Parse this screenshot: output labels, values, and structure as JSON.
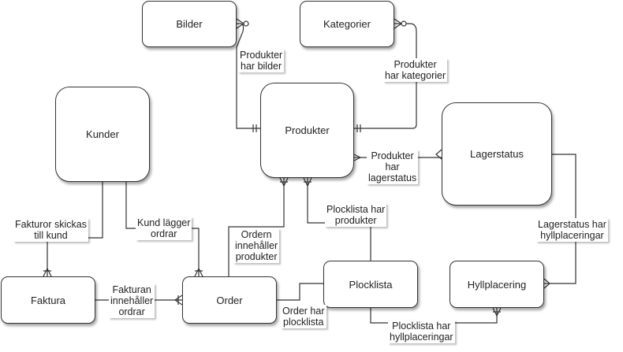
{
  "entities": {
    "bilder": "Bilder",
    "kategorier": "Kategorier",
    "kunder": "Kunder",
    "produkter": "Produkter",
    "lagerstatus": "Lagerstatus",
    "faktura": "Faktura",
    "order": "Order",
    "plocklista": "Plocklista",
    "hyllplacering": "Hyllplacering"
  },
  "relationships": {
    "produkter_har_bilder": "Produkter\nhar bilder",
    "produkter_har_kategorier": "Produkter\nhar kategorier",
    "produkter_har_lagerstatus": "Produkter\nhar\nlagerstatus",
    "fakturor_skickas_till_kund": "Fakturor skickas\ntill kund",
    "kund_lagger_ordrar": "Kund lägger\nordrar",
    "ordern_innehaller_produkter": "Ordern\ninnehåller\nprodukter",
    "plocklista_har_produkter": "Plocklista har\nprodukter",
    "lagerstatus_har_hyllplaceringar": "Lagerstatus har\nhyllplaceringar",
    "fakturan_innehaller_ordrar": "Fakturan\ninnehåller\nordrar",
    "order_har_plocklista": "Order har\nplocklista",
    "plocklista_har_hyllplaceringar": "Plocklista har\nhyllplaceringar"
  }
}
